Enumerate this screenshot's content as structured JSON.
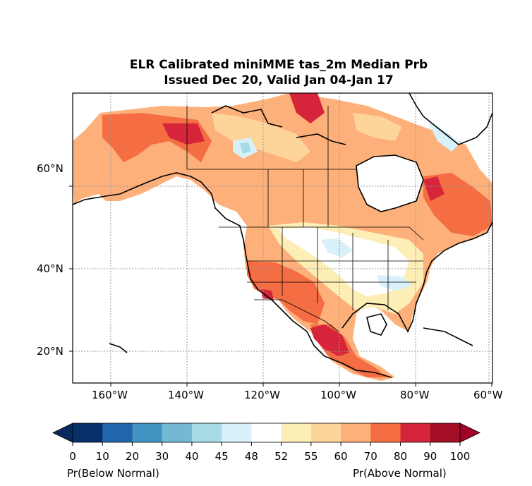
{
  "title": {
    "line1": "ELR Calibrated miniMME tas_2m Median Prb",
    "line2": "Issued Dec 20, Valid Jan 04-Jan 17"
  },
  "axes": {
    "lat_labels": [
      "60°N",
      "40°N",
      "20°N"
    ],
    "lon_labels": [
      "160°W",
      "140°W",
      "120°W",
      "100°W",
      "80°W",
      "60°W"
    ],
    "lon_range": [
      -170,
      -60
    ],
    "lat_range": [
      13,
      76
    ]
  },
  "colorbar": {
    "ticks": [
      "0",
      "10",
      "20",
      "30",
      "40",
      "45",
      "48",
      "52",
      "55",
      "60",
      "70",
      "80",
      "90",
      "100"
    ],
    "colors": [
      "#08306b",
      "#2166ac",
      "#4393c3",
      "#74b9d4",
      "#a6dbe6",
      "#d8f0fa",
      "#ffffff",
      "#fdeeb6",
      "#fdd49a",
      "#fdb07a",
      "#f46d43",
      "#d6243a",
      "#a50f26"
    ],
    "under_color": "#062a5e",
    "over_color": "#a50026",
    "label_left": "Pr(Below Normal)",
    "label_right": "Pr(Above Normal)"
  }
}
